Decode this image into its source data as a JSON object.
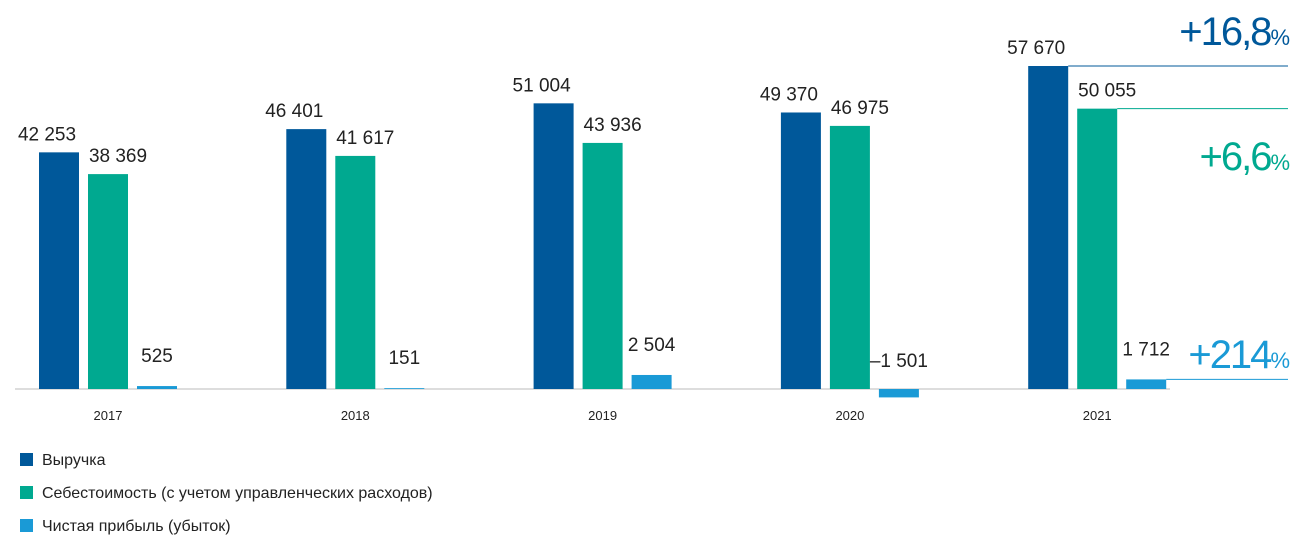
{
  "chart_data": {
    "type": "bar",
    "categories": [
      "2017",
      "2018",
      "2019",
      "2020",
      "2021"
    ],
    "series": [
      {
        "name": "Выручка",
        "color": "#00589a",
        "values": [
          42253,
          46401,
          51004,
          49370,
          57670
        ],
        "value_labels": [
          "42 253",
          "46 401",
          "51 004",
          "49 370",
          "57 670"
        ]
      },
      {
        "name": "Себестоимость (с учетом управленческих расходов)",
        "color": "#00a990",
        "values": [
          38369,
          41617,
          43936,
          46975,
          50055
        ],
        "value_labels": [
          "38 369",
          "41 617",
          "43 936",
          "46 975",
          "50 055"
        ]
      },
      {
        "name": "Чистая прибыль (убыток)",
        "color": "#1a9ad6",
        "values": [
          525,
          151,
          2504,
          -1501,
          1712
        ],
        "value_labels": [
          "525",
          "151",
          "2 504",
          "–1 501",
          "1 712"
        ]
      }
    ],
    "annotations": [
      "+16,8%",
      "+6,6%",
      "+214%"
    ]
  }
}
